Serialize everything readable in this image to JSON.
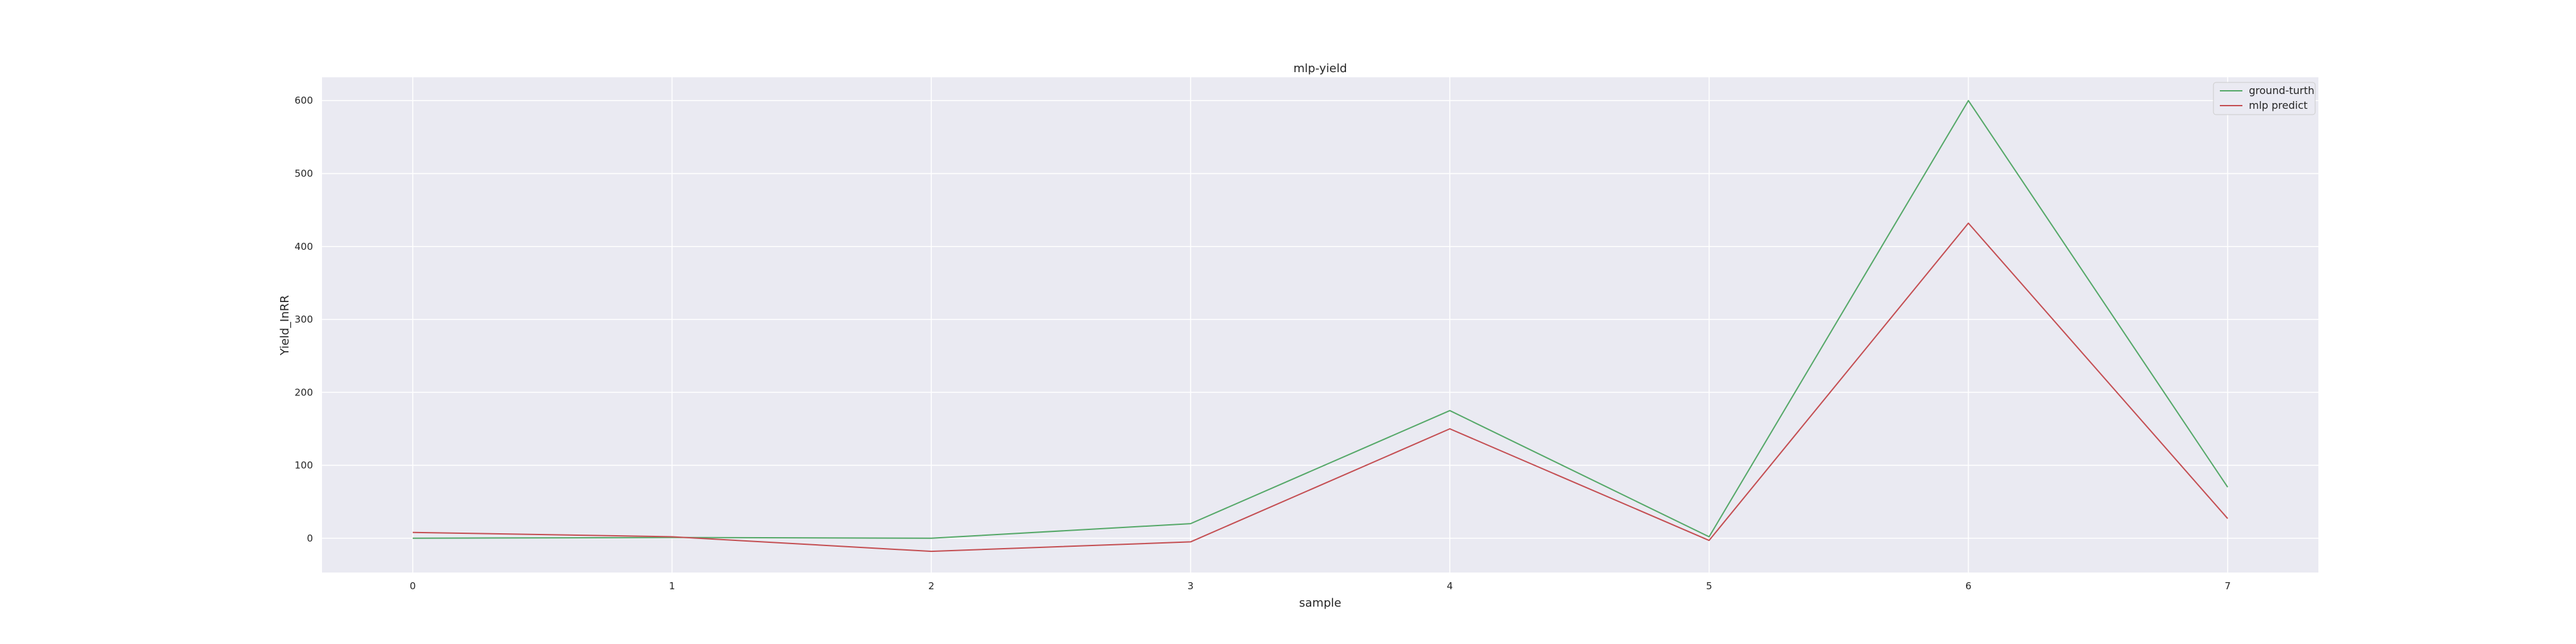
{
  "chart_data": {
    "type": "line",
    "title": "mlp-yield",
    "xlabel": "sample",
    "ylabel": "Yield_InRR",
    "x": [
      0,
      1,
      2,
      3,
      4,
      5,
      6,
      7
    ],
    "xticks": [
      0,
      1,
      2,
      3,
      4,
      5,
      6,
      7
    ],
    "yticks": [
      0,
      100,
      200,
      300,
      400,
      500,
      600
    ],
    "xlim": [
      -0.35,
      7.35
    ],
    "ylim": [
      -47,
      632
    ],
    "grid": true,
    "legend_position": "top-right",
    "series": [
      {
        "name": "ground-turth",
        "color": "#55a868",
        "values": [
          0,
          1,
          0,
          20,
          175,
          2,
          600,
          70
        ]
      },
      {
        "name": "mlp predict",
        "color": "#c44e52",
        "values": [
          8,
          2,
          -18,
          -5,
          150,
          -3,
          432,
          27
        ]
      }
    ]
  },
  "colors": {
    "plot_background": "#eaeaf2",
    "grid": "#ffffff",
    "text": "#262626"
  }
}
